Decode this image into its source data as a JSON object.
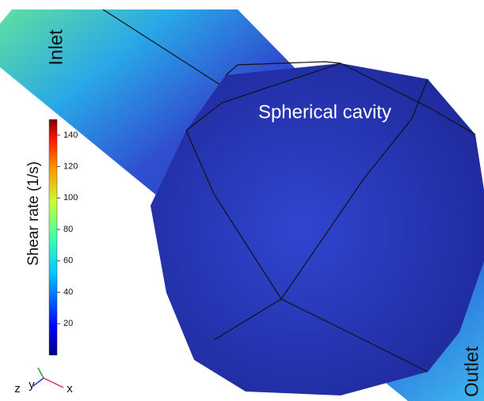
{
  "labels": {
    "inlet": "Inlet",
    "outlet": "Outlet",
    "cavity": "Spherical cavity"
  },
  "colorbar": {
    "title": "Shear rate (1/s)",
    "lim": [
      0,
      150
    ],
    "ticks": [
      20,
      40,
      60,
      80,
      100,
      120,
      140
    ]
  },
  "axes": {
    "z": "z",
    "y": "y",
    "x": "x"
  }
}
